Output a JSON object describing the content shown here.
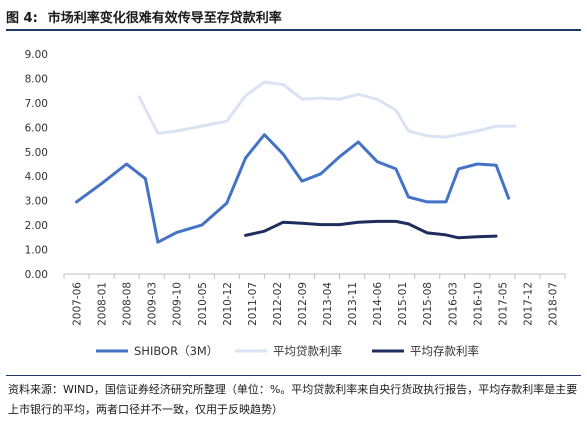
{
  "figure": {
    "label": "图 4:",
    "title": "市场利率变化很难有效传导至存贷款利率"
  },
  "source_note": "资料来源：WIND，国信证券经济研究所整理（单位：%。平均贷款利率来自央行货政执行报告，平均存款利率是主要上市银行的平均，两者口径并不一致，仅用于反映趋势）",
  "chart_data": {
    "type": "line",
    "ylim": [
      0,
      9
    ],
    "y_ticks": [
      "0.00",
      "1.00",
      "2.00",
      "3.00",
      "4.00",
      "5.00",
      "6.00",
      "7.00",
      "8.00",
      "9.00"
    ],
    "x_tick_labels": [
      "2007-06",
      "2008-01",
      "2008-08",
      "2009-03",
      "2009-10",
      "2010-05",
      "2010-12",
      "2011-07",
      "2012-02",
      "2012-09",
      "2013-04",
      "2013-11",
      "2014-06",
      "2015-01",
      "2015-08",
      "2016-03",
      "2016-10",
      "2017-05",
      "2017-12",
      "2018-07"
    ],
    "grid": false,
    "legend_position": "bottom",
    "series": [
      {
        "name": "SHIBOR（3M）",
        "color": "#4472c4",
        "points": [
          [
            0,
            2.95
          ],
          [
            1,
            3.7
          ],
          [
            2,
            4.5
          ],
          [
            2.75,
            3.9
          ],
          [
            3.25,
            1.3
          ],
          [
            4,
            1.7
          ],
          [
            5,
            2.0
          ],
          [
            6,
            2.9
          ],
          [
            6.75,
            4.75
          ],
          [
            7.5,
            5.7
          ],
          [
            8.25,
            4.9
          ],
          [
            9,
            3.8
          ],
          [
            9.75,
            4.1
          ],
          [
            10.5,
            4.8
          ],
          [
            11.25,
            5.4
          ],
          [
            12,
            4.6
          ],
          [
            12.75,
            4.3
          ],
          [
            13.25,
            3.15
          ],
          [
            14,
            2.95
          ],
          [
            14.75,
            2.95
          ],
          [
            15.25,
            4.3
          ],
          [
            16,
            4.5
          ],
          [
            16.75,
            4.45
          ],
          [
            17.25,
            3.1
          ]
        ]
      },
      {
        "name": "平均贷款利率",
        "color": "#dae3f3",
        "points": [
          [
            2.5,
            7.25
          ],
          [
            3.25,
            5.75
          ],
          [
            4,
            5.85
          ],
          [
            5,
            6.05
          ],
          [
            6,
            6.25
          ],
          [
            6.75,
            7.3
          ],
          [
            7.5,
            7.85
          ],
          [
            8.25,
            7.75
          ],
          [
            9,
            7.15
          ],
          [
            9.75,
            7.2
          ],
          [
            10.5,
            7.15
          ],
          [
            11.25,
            7.35
          ],
          [
            12,
            7.15
          ],
          [
            12.75,
            6.7
          ],
          [
            13.25,
            5.85
          ],
          [
            14,
            5.65
          ],
          [
            14.75,
            5.6
          ],
          [
            15.25,
            5.7
          ],
          [
            16,
            5.85
          ],
          [
            16.75,
            6.05
          ],
          [
            17.5,
            6.05
          ]
        ]
      },
      {
        "name": "平均存款利率",
        "color": "#1f2d5c",
        "points": [
          [
            6.75,
            1.58
          ],
          [
            7.5,
            1.75
          ],
          [
            8.25,
            2.12
          ],
          [
            9,
            2.08
          ],
          [
            9.75,
            2.02
          ],
          [
            10.5,
            2.02
          ],
          [
            11.25,
            2.12
          ],
          [
            12,
            2.15
          ],
          [
            12.75,
            2.15
          ],
          [
            13.25,
            2.05
          ],
          [
            14,
            1.68
          ],
          [
            14.75,
            1.6
          ],
          [
            15.25,
            1.48
          ],
          [
            16,
            1.52
          ],
          [
            16.75,
            1.55
          ]
        ]
      }
    ]
  }
}
